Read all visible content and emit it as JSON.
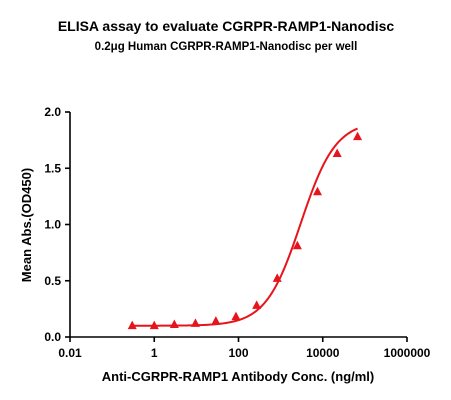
{
  "chart_data": {
    "type": "scatter",
    "title": "ELISA assay to evaluate CGRPR-RAMP1-Nanodisc",
    "subtitle": "0.2μg Human CGRPR-RAMP1-Nanodisc per well",
    "xlabel": "Anti-CGRPR-RAMP1 Antibody Conc. (ng/ml)",
    "ylabel": "Mean Abs.(OD450)",
    "xscale": "log",
    "xlim": [
      0.01,
      1000000
    ],
    "ylim": [
      0,
      2.0
    ],
    "xticks": [
      0.01,
      1,
      100,
      10000,
      1000000
    ],
    "xtick_labels": [
      "0.01",
      "1",
      "100",
      "10000",
      "1000000"
    ],
    "yticks": [
      0,
      0.5,
      1.0,
      1.5,
      2.0
    ],
    "ytick_labels": [
      "0.0",
      "0.5",
      "1.0",
      "1.5",
      "2.0"
    ],
    "grid": false,
    "color": "#e8141c",
    "marker": "triangle",
    "series": [
      {
        "x": [
          0.3,
          1.0,
          3.0,
          9.5,
          29,
          87,
          270,
          830,
          2500,
          7500,
          22000,
          67000
        ],
        "y": [
          0.1,
          0.1,
          0.11,
          0.12,
          0.14,
          0.18,
          0.28,
          0.52,
          0.81,
          1.29,
          1.63,
          1.78
        ]
      }
    ],
    "fit": {
      "model": "4PL",
      "bottom": 0.1,
      "top": 1.92,
      "ec50": 3000,
      "hill": 1.05
    }
  }
}
